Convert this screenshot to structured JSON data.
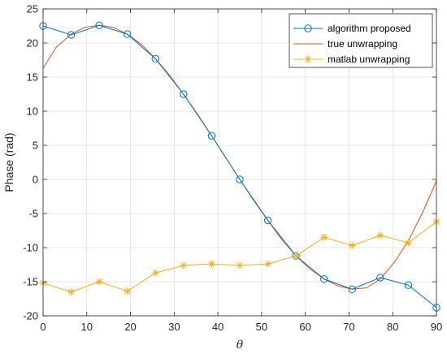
{
  "chart_data": {
    "type": "line",
    "xlabel": "θ",
    "ylabel": "Phase (rad)",
    "xlim": [
      0,
      90
    ],
    "ylim": [
      -20,
      25
    ],
    "xticks": [
      "0",
      "10",
      "20",
      "30",
      "40",
      "50",
      "60",
      "70",
      "80",
      "90"
    ],
    "yticks": [
      "25",
      "20",
      "15",
      "10",
      "5",
      "0",
      "-5",
      "-10",
      "-15",
      "-20"
    ],
    "grid": true,
    "legend_position": "top-right",
    "x": [
      0,
      6.43,
      12.86,
      19.29,
      25.71,
      32.14,
      38.57,
      45,
      51.43,
      57.86,
      64.29,
      70.71,
      77.14,
      83.57,
      90
    ],
    "series": [
      {
        "name": "algorithm proposed",
        "color": "#0072BD",
        "marker": "circle",
        "y": [
          22.5,
          21.2,
          22.6,
          21.3,
          17.7,
          12.5,
          6.4,
          0.0,
          -6.0,
          -11.2,
          -14.6,
          -16.1,
          -14.4,
          -15.5,
          -18.8
        ]
      },
      {
        "name": "true unwrapping",
        "color": "#D95319",
        "marker": "none",
        "x": [
          0,
          3,
          6.43,
          9.5,
          12.86,
          16,
          19.29,
          22.5,
          25.71,
          28.9,
          32.14,
          35.4,
          38.57,
          41.8,
          45,
          48.2,
          51.43,
          54.6,
          57.86,
          61,
          64.29,
          67.5,
          70.71,
          74,
          77.14,
          80.3,
          83.57,
          86.8,
          90
        ],
        "y": [
          16.3,
          19.4,
          21.3,
          22.3,
          22.6,
          22.3,
          21.3,
          19.8,
          17.7,
          15.3,
          12.5,
          9.5,
          6.4,
          3.2,
          0.0,
          -3.1,
          -6.0,
          -8.8,
          -11.2,
          -13.1,
          -14.6,
          -15.6,
          -16.1,
          -15.9,
          -14.6,
          -12.2,
          -9.0,
          -4.9,
          -0.2
        ]
      },
      {
        "name": "matlab unwrapping",
        "color": "#EDB120",
        "marker": "star",
        "y": [
          -15.2,
          -16.5,
          -15.0,
          -16.4,
          -13.7,
          -12.6,
          -12.4,
          -12.6,
          -12.4,
          -11.2,
          -8.5,
          -9.7,
          -8.2,
          -9.3,
          -6.2
        ]
      }
    ]
  }
}
